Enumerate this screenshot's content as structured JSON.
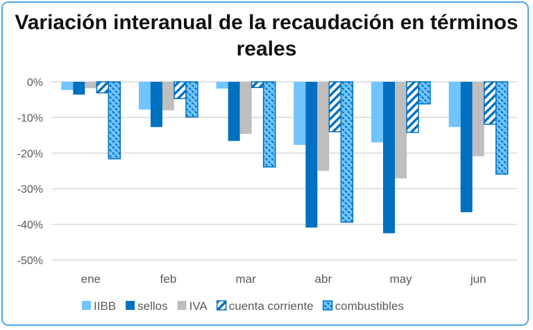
{
  "chart_data": {
    "type": "bar",
    "title": "Variación interanual de la recaudación en términos reales",
    "categories": [
      "ene",
      "feb",
      "mar",
      "abr",
      "may",
      "jun"
    ],
    "series": [
      {
        "name": "IIBB",
        "values": [
          -2.3,
          -7.8,
          -1.9,
          -17.7,
          -17.0,
          -12.7
        ],
        "color": "#70c4ff",
        "pattern": "solid"
      },
      {
        "name": "sellos",
        "values": [
          -3.6,
          -12.7,
          -16.6,
          -40.9,
          -42.5,
          -36.6
        ],
        "color": "#0070c0",
        "pattern": "solid"
      },
      {
        "name": "IVA",
        "values": [
          -1.8,
          -8.0,
          -14.6,
          -25.0,
          -27.1,
          -20.9
        ],
        "color": "#bfbfbf",
        "pattern": "solid"
      },
      {
        "name": "cuenta corriente",
        "values": [
          -3.1,
          -4.7,
          -1.6,
          -14.0,
          -14.2,
          -11.9
        ],
        "color": "#0070c0",
        "pattern": "wide-upward-diagonal"
      },
      {
        "name": "combustibles",
        "values": [
          -21.6,
          -9.9,
          -23.9,
          -39.4,
          -6.2,
          -25.9
        ],
        "color": "#0070c0",
        "pattern": "dashed-downward-diagonal"
      }
    ],
    "ylim": [
      -50,
      0
    ],
    "yticks": [
      0,
      -10,
      -20,
      -30,
      -40,
      -50
    ],
    "ytick_labels": [
      "0%",
      "-10%",
      "-20%",
      "-30%",
      "-40%",
      "-50%"
    ],
    "grid": true,
    "legend": "bottom"
  }
}
